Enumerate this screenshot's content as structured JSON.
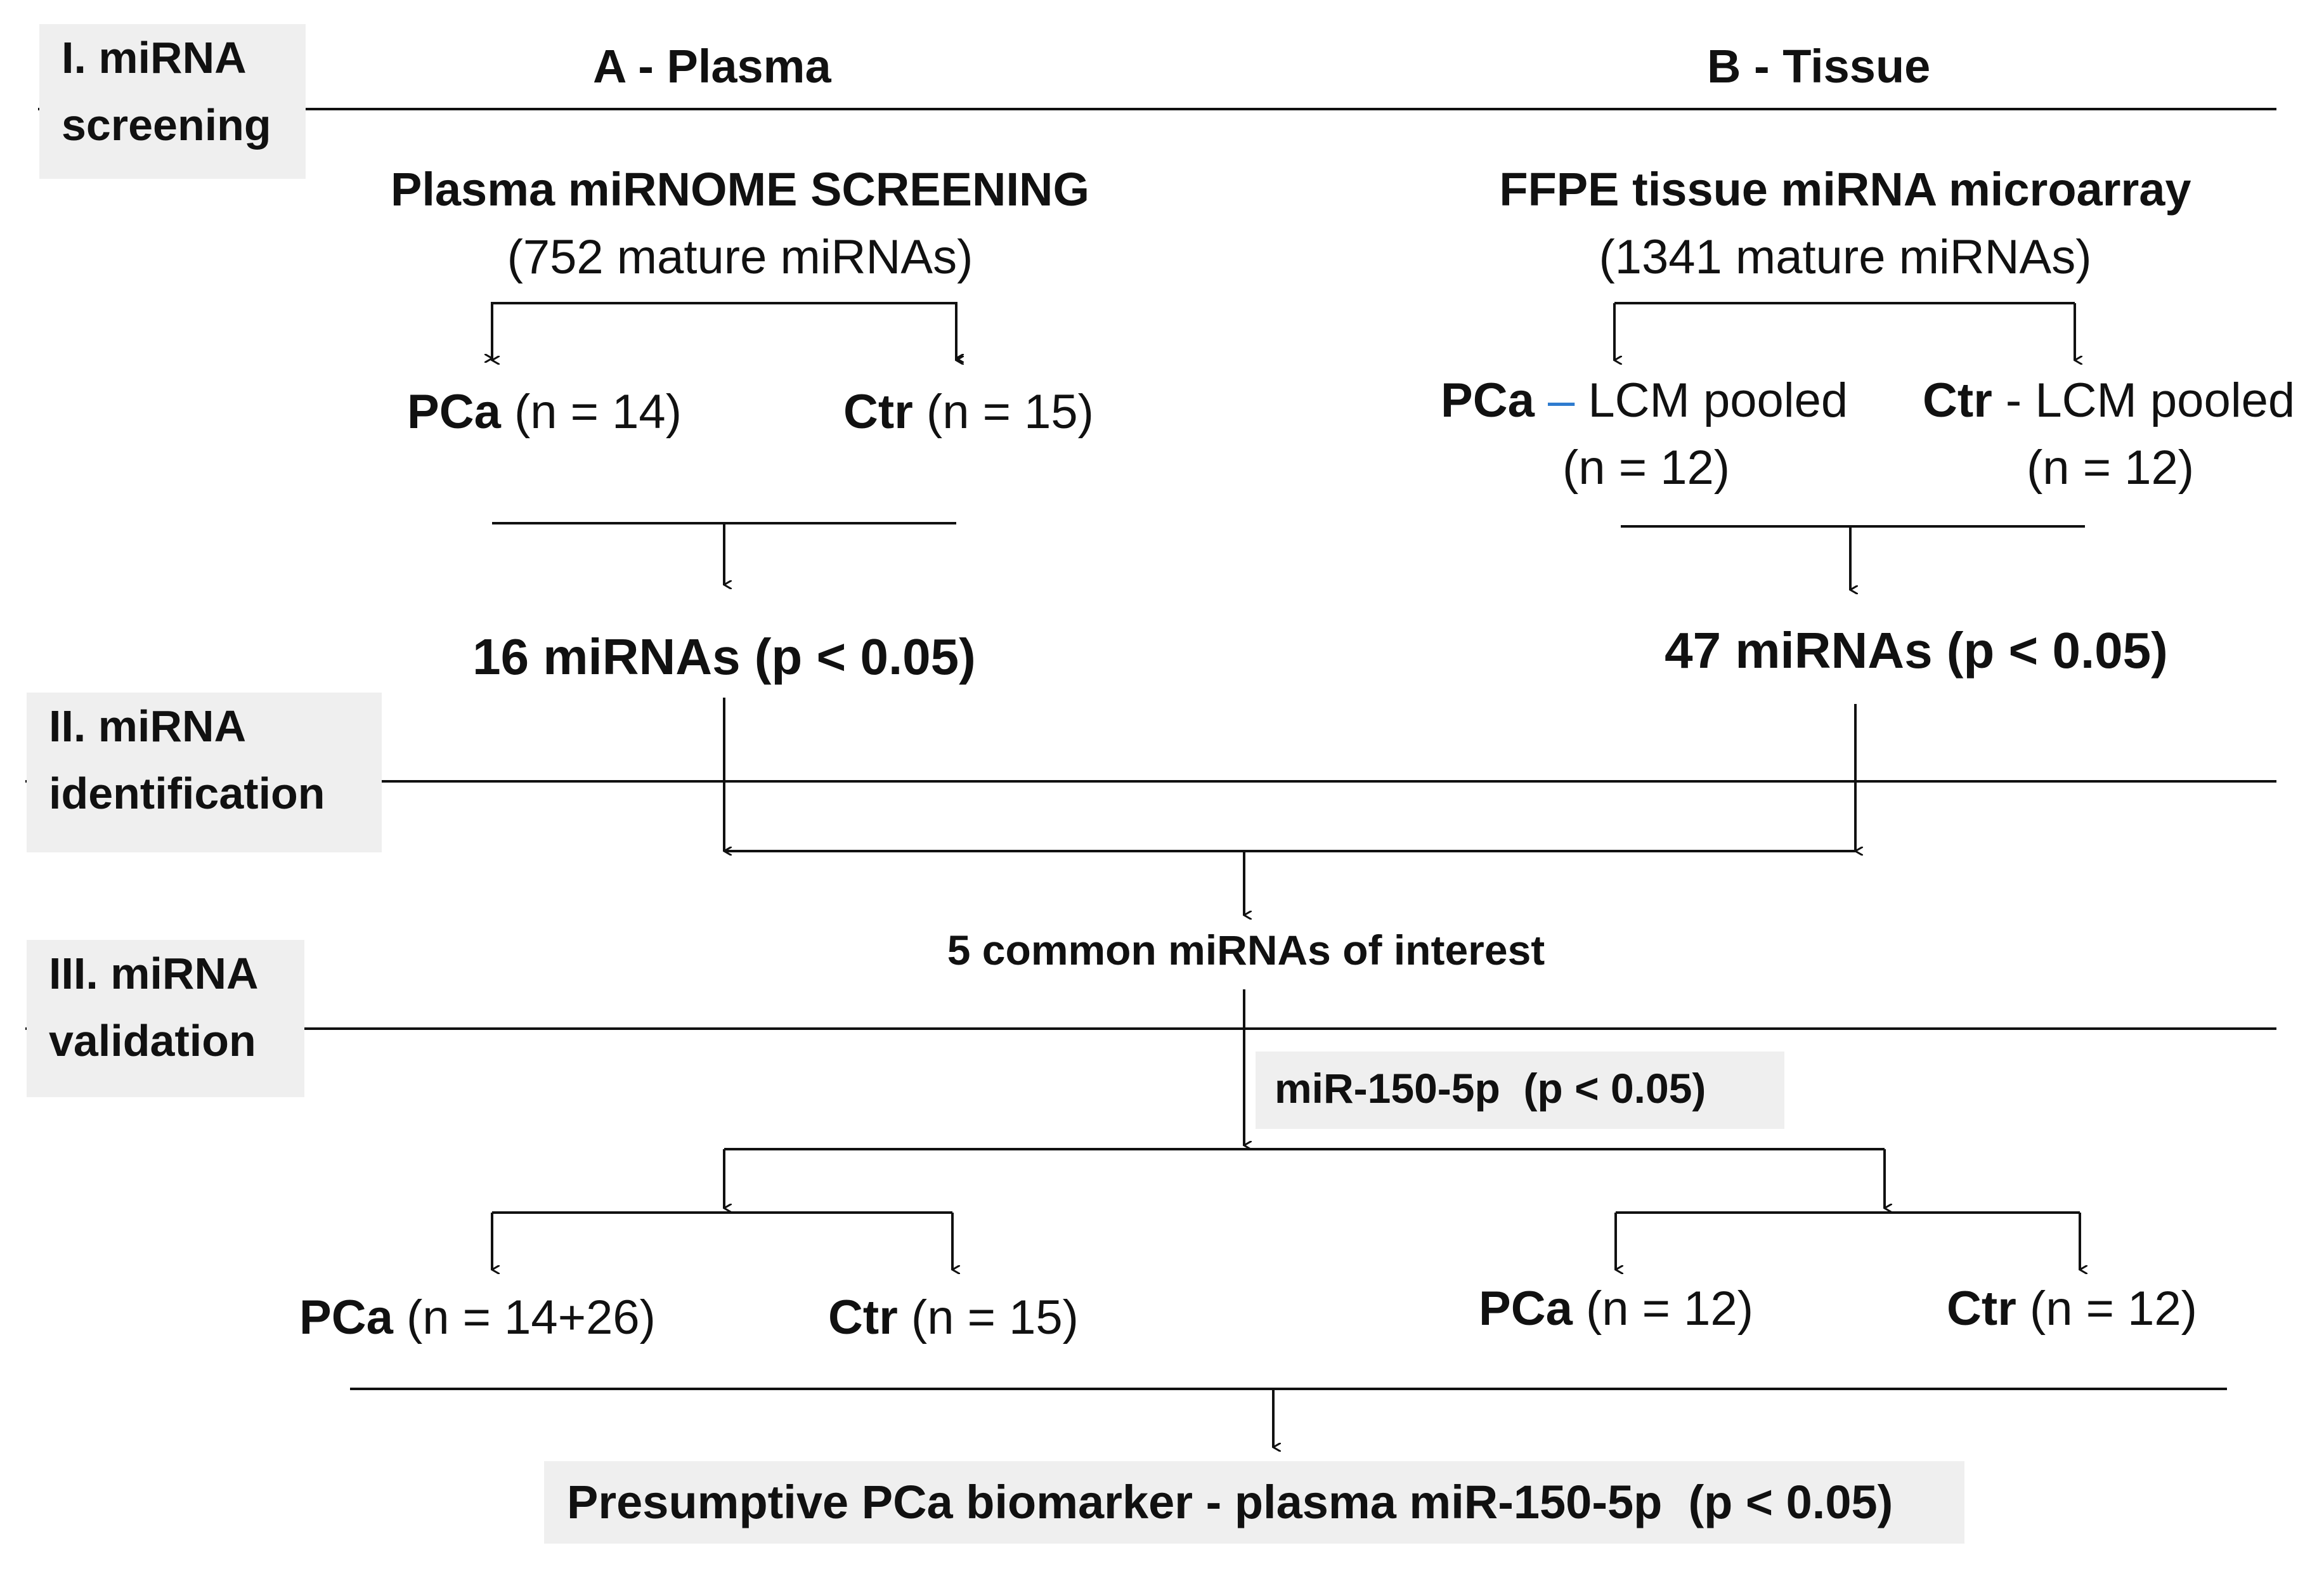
{
  "stages": {
    "s1_line1": "I. miRNA",
    "s1_line2": "screening",
    "s2_line1": "II. miRNA",
    "s2_line2": "identification",
    "s3_line1": "III. miRNA",
    "s3_line2": "validation"
  },
  "columns": {
    "plasma": "A - Plasma",
    "tissue": "B - Tissue"
  },
  "plasma": {
    "title": "Plasma miRNOME SCREENING",
    "count": "(752 mature miRNAs)",
    "pca_label": "PCa",
    "pca_n": "(n = 14)",
    "ctr_label": "Ctr",
    "ctr_n": "(n = 15)",
    "result": "16 miRNAs (p < 0.05)"
  },
  "tissue": {
    "title": "FFPE tissue miRNA microarray",
    "count": "(1341 mature miRNAs)",
    "pca_label": "PCa",
    "pca_dash": "–",
    "pca_rest": "LCM pooled",
    "pca_n": "(n = 12)",
    "ctr_label": "Ctr",
    "ctr_rest": "- LCM pooled",
    "ctr_n": "(n = 12)",
    "result": "47 miRNAs (p < 0.05)"
  },
  "common": "5 common miRNAs of interest",
  "validated": "miR-150-5p  (p < 0.05)",
  "validation": {
    "plasma_pca_label": "PCa",
    "plasma_pca_n": "(n = 14+26)",
    "plasma_ctr_label": "Ctr",
    "plasma_ctr_n": "(n = 15)",
    "tissue_pca_label": "PCa",
    "tissue_pca_n": "(n = 12)",
    "tissue_ctr_label": "Ctr",
    "tissue_ctr_n": "(n = 12)"
  },
  "conclusion": "Presumptive PCa biomarker - plasma miR-150-5p  (p < 0.05)",
  "colors": {
    "stage_bg": "#efefef",
    "dash_accent": "#2e7bcf"
  }
}
